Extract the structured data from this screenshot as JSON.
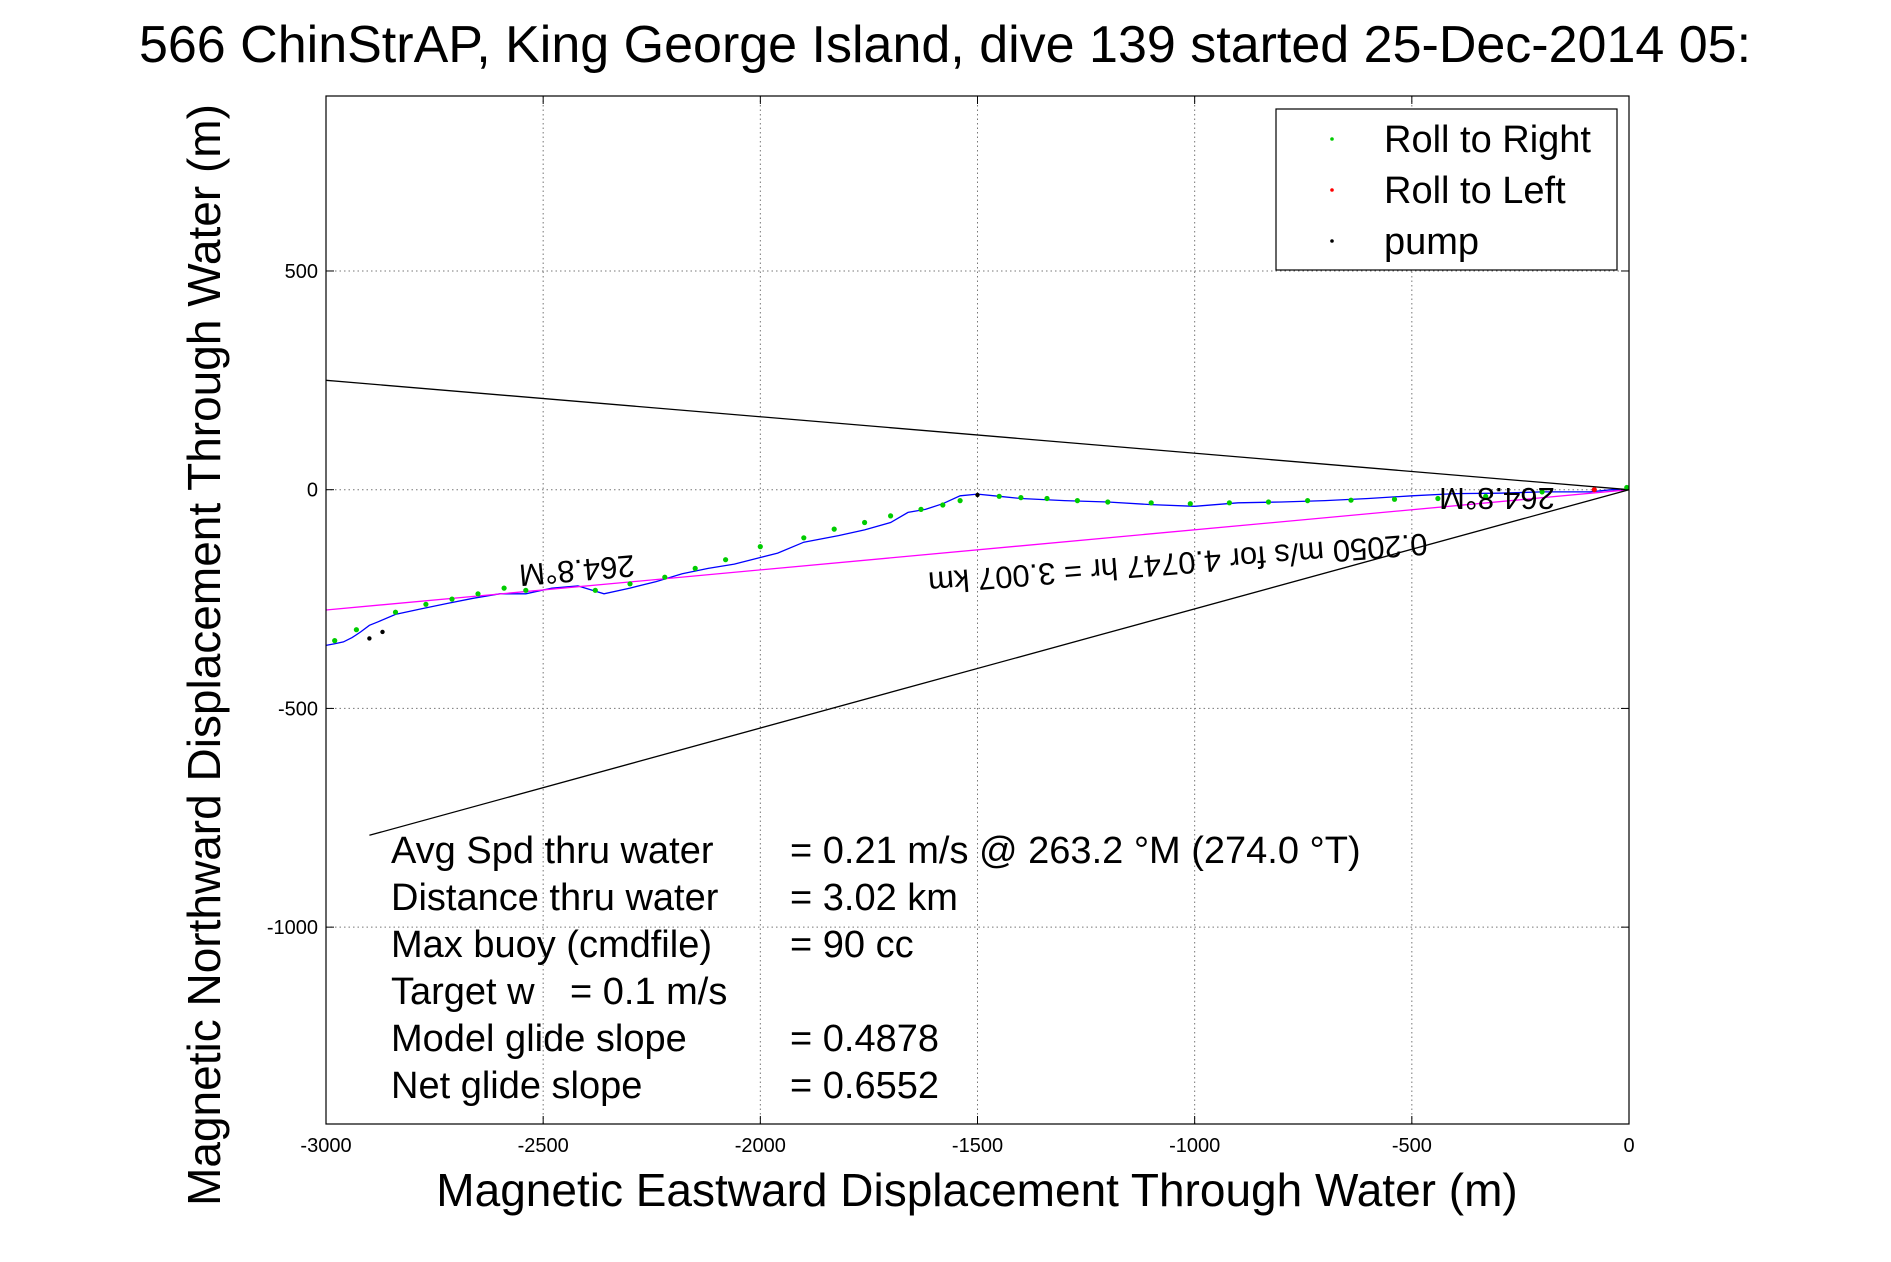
{
  "chart_data": {
    "type": "line",
    "title": "566 ChinStrAP, King George Island, dive 139 started 25-Dec-2014 05:",
    "xlabel": "Magnetic Eastward Displacement Through Water (m)",
    "ylabel": "Magnetic Northward Displacement Through Water (m)",
    "xlim": [
      -3000,
      0
    ],
    "ylim": [
      -1450,
      900
    ],
    "x_ticks": [
      -3000,
      -2500,
      -2000,
      -1500,
      -1000,
      -500,
      0
    ],
    "y_ticks": [
      500,
      0,
      -500,
      -1000
    ],
    "grid": true,
    "legend_position": "top-right",
    "legend": [
      {
        "label": "Roll to Right",
        "color": "#00cc00"
      },
      {
        "label": "Roll to Left",
        "color": "#ff0000"
      },
      {
        "label": "pump",
        "color": "#000000"
      }
    ],
    "series": [
      {
        "color": "#0000ff",
        "x": [
          0,
          -40,
          -90,
          -200,
          -300,
          -400,
          -500,
          -600,
          -700,
          -800,
          -900,
          -1000,
          -1100,
          -1200,
          -1300,
          -1400,
          -1450,
          -1500,
          -1540,
          -1580,
          -1620,
          -1660,
          -1700,
          -1760,
          -1820,
          -1900,
          -1960,
          -2000,
          -2060,
          -2120,
          -2180,
          -2240,
          -2300,
          -2360,
          -2420,
          -2480,
          -2540,
          -2600,
          -2660,
          -2720,
          -2780,
          -2840,
          -2880,
          -2900,
          -2920,
          -2940,
          -2960,
          -2980,
          -3000
        ],
        "y": [
          0,
          0,
          -5,
          -5,
          -8,
          -9,
          -14,
          -20,
          -25,
          -28,
          -30,
          -38,
          -34,
          -28,
          -25,
          -20,
          -15,
          -10,
          -14,
          -32,
          -45,
          -52,
          -75,
          -92,
          -105,
          -120,
          -145,
          -155,
          -170,
          -180,
          -192,
          -210,
          -225,
          -238,
          -220,
          -225,
          -238,
          -238,
          -248,
          -260,
          -272,
          -285,
          -302,
          -310,
          -325,
          -338,
          -348,
          -352,
          -356
        ]
      },
      {
        "color": "#ff00ff",
        "x": [
          0,
          -3000
        ],
        "y": [
          0,
          -275
        ]
      },
      {
        "color": "#000000",
        "x": [
          0,
          -3000
        ],
        "y": [
          0,
          250
        ]
      },
      {
        "color": "#000000",
        "x": [
          0,
          -2900
        ],
        "y": [
          0,
          -790
        ]
      }
    ],
    "markers": {
      "roll_right": {
        "color": "#00cc00",
        "x": [
          -5,
          -200,
          -330,
          -440,
          -540,
          -640,
          -740,
          -830,
          -920,
          -1010,
          -1100,
          -1200,
          -1270,
          -1340,
          -1400,
          -1450,
          -1540,
          -1580,
          -1630,
          -1700,
          -1760,
          -1830,
          -1900,
          -2000,
          -2080,
          -2150,
          -2220,
          -2300,
          -2380,
          -2540,
          -2590,
          -2650,
          -2710,
          -2770,
          -2840,
          -2930,
          -2980
        ],
        "y": [
          5,
          -5,
          -15,
          -20,
          -22,
          -24,
          -25,
          -28,
          -30,
          -32,
          -30,
          -28,
          -25,
          -20,
          -18,
          -15,
          -25,
          -35,
          -45,
          -60,
          -75,
          -90,
          -110,
          -130,
          -160,
          -180,
          -200,
          -215,
          -230,
          -230,
          -225,
          -238,
          -250,
          -262,
          -280,
          -320,
          -345
        ]
      },
      "roll_left": {
        "color": "#ff0000",
        "x": [
          -80
        ],
        "y": [
          0
        ]
      },
      "pump": {
        "color": "#000000",
        "x": [
          -1500,
          -2870,
          -2900
        ],
        "y": [
          -12,
          -325,
          -340
        ]
      }
    },
    "annotations": {
      "heading_labels": [
        "264.8°M",
        "264.8°M"
      ],
      "speed_label": "0.2050 m/s for 4.0747 hr = 3.007 km"
    }
  },
  "stats": [
    {
      "label": "Avg Spd thru water",
      "value": "=  0.21 m/s @ 263.2 °M (274.0 °T)"
    },
    {
      "label": "Distance thru water",
      "value": "=  3.02 km"
    },
    {
      "label": "Max buoy (cmdfile)",
      "value": "= 90 cc"
    },
    {
      "label": "Target w",
      "value": "= 0.1 m/s"
    },
    {
      "label": "Model glide slope",
      "value": "= 0.4878"
    },
    {
      "label": "Net glide slope",
      "value": "= 0.6552"
    }
  ]
}
